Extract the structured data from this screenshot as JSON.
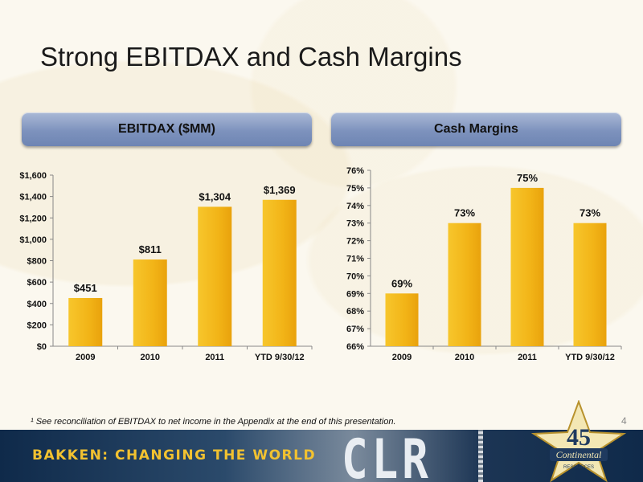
{
  "title": "Strong EBITDAX and Cash Margins",
  "chart_data": [
    {
      "type": "bar",
      "title": "EBITDAX  ($MM)",
      "categories": [
        "2009",
        "2010",
        "2011",
        "YTD 9/30/12"
      ],
      "values": [
        451,
        811,
        1304,
        1369
      ],
      "data_labels": [
        "$451",
        "$811",
        "$1,304",
        "$1,369"
      ],
      "ylim": [
        0,
        1600
      ],
      "yticks": [
        0,
        200,
        400,
        600,
        800,
        1000,
        1200,
        1400,
        1600
      ],
      "ytick_labels": [
        "$0",
        "$200",
        "$400",
        "$600",
        "$800",
        "$1,000",
        "$1,200",
        "$1,400",
        "$1,600"
      ],
      "color": "#f2b417",
      "grid": false,
      "legend": "none"
    },
    {
      "type": "bar",
      "title": "Cash Margins",
      "categories": [
        "2009",
        "2010",
        "2011",
        "YTD 9/30/12"
      ],
      "values": [
        69,
        73,
        75,
        73
      ],
      "data_labels": [
        "69%",
        "73%",
        "75%",
        "73%"
      ],
      "ylim": [
        66,
        76
      ],
      "yticks": [
        66,
        67,
        68,
        69,
        70,
        71,
        72,
        73,
        74,
        75,
        76
      ],
      "ytick_labels": [
        "66%",
        "67%",
        "68%",
        "69%",
        "70%",
        "71%",
        "72%",
        "73%",
        "74%",
        "75%",
        "76%"
      ],
      "color": "#f2b417",
      "grid": false,
      "legend": "none"
    }
  ],
  "footnote": "¹ See reconciliation of EBITDAX to net income in the Appendix at the end of this presentation.",
  "page_number": "4",
  "banner": {
    "tagline": "BAKKEN: CHANGING THE WORLD",
    "ticker": "CLR",
    "logo_text": "Continental",
    "logo_sub": "RESOURCES",
    "logo_number": "45"
  }
}
